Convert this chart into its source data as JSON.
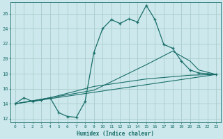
{
  "xlabel": "Humidex (Indice chaleur)",
  "xlim": [
    -0.5,
    23.5
  ],
  "ylim": [
    11.5,
    27.5
  ],
  "xticks": [
    0,
    1,
    2,
    3,
    4,
    5,
    6,
    7,
    8,
    9,
    10,
    11,
    12,
    13,
    14,
    15,
    16,
    17,
    18,
    19,
    20,
    21,
    22,
    23
  ],
  "yticks": [
    12,
    14,
    16,
    18,
    20,
    22,
    24,
    26
  ],
  "bg_color": "#cce8ec",
  "grid_color": "#aacccc",
  "line_color": "#1a6e6a",
  "line1_x": [
    0,
    1,
    2,
    3,
    4,
    5,
    6,
    7,
    8,
    9,
    10,
    11,
    12,
    13,
    14,
    15,
    16,
    17,
    18,
    19,
    20,
    21,
    22,
    23
  ],
  "line1_y": [
    14.0,
    14.8,
    14.3,
    14.5,
    14.8,
    12.8,
    12.3,
    12.2,
    14.3,
    20.8,
    24.0,
    25.2,
    24.7,
    25.3,
    24.9,
    27.1,
    25.2,
    21.9,
    21.4,
    19.7,
    18.5,
    18.1,
    18.0,
    17.9
  ],
  "line2_x": [
    0,
    23
  ],
  "line2_y": [
    14.0,
    17.9
  ],
  "line3_x": [
    0,
    9,
    15,
    18,
    20,
    21,
    22,
    23
  ],
  "line3_y": [
    14.0,
    15.8,
    19.2,
    21.0,
    19.7,
    18.5,
    18.2,
    17.9
  ],
  "line4_x": [
    0,
    4,
    9,
    15,
    20,
    23
  ],
  "line4_y": [
    14.0,
    14.8,
    16.3,
    17.3,
    17.8,
    17.9
  ]
}
